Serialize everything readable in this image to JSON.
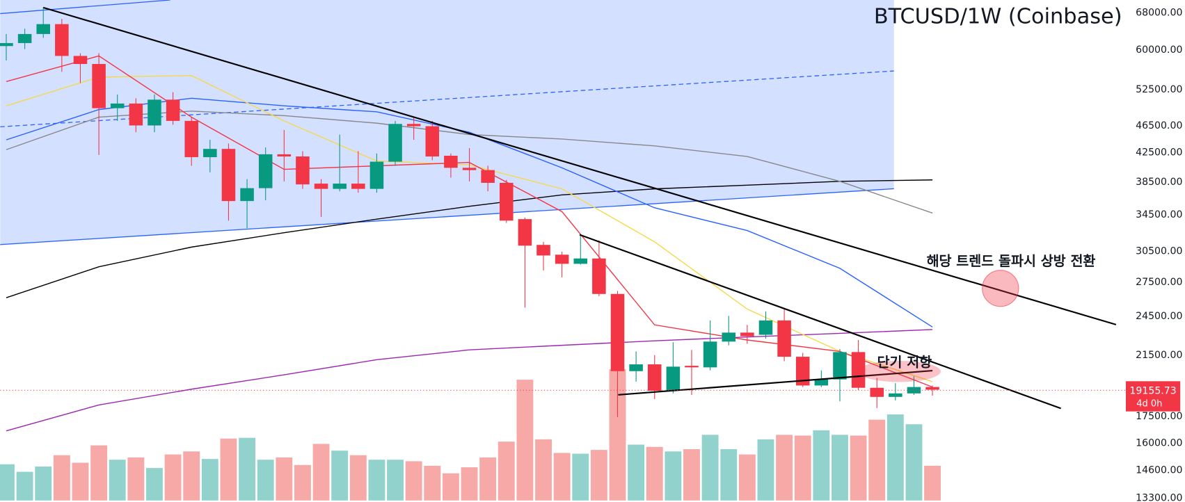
{
  "chart_data": {
    "type": "candlestick",
    "title": "BTCUSD/1W (Coinbase)",
    "log": true,
    "grid": false,
    "up_color": "#089981",
    "down_color": "#f23645",
    "up_volume_color": "#92d2cc",
    "down_volume_color": "#f7a9a7",
    "ylim": [
      13200,
      71000
    ],
    "yticks": [
      {
        "value": 13300,
        "label": "13300.00"
      },
      {
        "value": 14600,
        "label": "14600.00"
      },
      {
        "value": 16000,
        "label": "16000.00"
      },
      {
        "value": 17500,
        "label": "17500.00"
      },
      {
        "value": 21500,
        "label": "21500.00"
      },
      {
        "value": 24500,
        "label": "24500.00"
      },
      {
        "value": 27500,
        "label": "27500.00"
      },
      {
        "value": 30500,
        "label": "30500.00"
      },
      {
        "value": 34500,
        "label": "34500.00"
      },
      {
        "value": 38500,
        "label": "38500.00"
      },
      {
        "value": 42500,
        "label": "42500.00"
      },
      {
        "value": 46500,
        "label": "46500.00"
      },
      {
        "value": 52500,
        "label": "52500.00"
      },
      {
        "value": 60000,
        "label": "60000.00"
      },
      {
        "value": 68000,
        "label": "68000.00"
      }
    ],
    "open": [
      60810,
      61430,
      63330,
      65470,
      58830,
      57260,
      49350,
      50130,
      46570,
      50790,
      47290,
      41860,
      43040,
      36120,
      37720,
      42270,
      41960,
      38300,
      37630,
      38300,
      37630,
      41230,
      46810,
      46450,
      42060,
      40390,
      40080,
      38400,
      33990,
      31170,
      30160,
      29250,
      29780,
      26430,
      20390,
      20860,
      19090,
      20760,
      20650,
      22520,
      23210,
      23040,
      24180,
      21400,
      19430,
      19830,
      21740,
      19280,
      18700,
      18920,
      19330
    ],
    "high": [
      63330,
      64470,
      69230,
      66630,
      59360,
      59360,
      51680,
      51030,
      51680,
      52080,
      47890,
      44370,
      43820,
      38880,
      43260,
      45870,
      42720,
      38880,
      45170,
      42720,
      42380,
      47290,
      47890,
      47290,
      42380,
      43150,
      40660,
      38780,
      34160,
      31490,
      30470,
      32300,
      31650,
      26700,
      21790,
      21520,
      22470,
      21900,
      24180,
      24550,
      23820,
      24930,
      25190,
      21680,
      20440,
      21960,
      22640,
      19930,
      19580,
      20040,
      19430
    ],
    "low": [
      57940,
      60190,
      62530,
      55770,
      53690,
      42170,
      47290,
      45520,
      45520,
      46690,
      40660,
      39780,
      33820,
      32960,
      36210,
      38590,
      37630,
      34250,
      37330,
      37150,
      37150,
      40660,
      44370,
      41440,
      39080,
      38590,
      37330,
      33560,
      25250,
      28600,
      27950,
      29180,
      26230,
      17470,
      19680,
      18560,
      18920,
      18820,
      20440,
      22240,
      22350,
      22750,
      21080,
      19330,
      19330,
      18420,
      19140,
      18010,
      18480,
      18820,
      18780
    ],
    "close": [
      61430,
      63330,
      65470,
      58830,
      57260,
      49350,
      50130,
      46570,
      50790,
      47290,
      41860,
      43040,
      36120,
      37720,
      42270,
      41960,
      38200,
      37630,
      38300,
      37630,
      41230,
      46810,
      46450,
      41960,
      40390,
      40080,
      38400,
      33820,
      31090,
      30080,
      29250,
      29780,
      26430,
      20390,
      20860,
      19090,
      20700,
      20650,
      22520,
      23210,
      22930,
      24180,
      21400,
      19430,
      19830,
      21740,
      19280,
      18700,
      18920,
      19330,
      19155.73
    ],
    "volume": [
      48,
      38,
      45,
      60,
      50,
      73,
      54,
      57,
      43,
      61,
      65,
      55,
      82,
      83,
      54,
      57,
      47,
      75,
      66,
      60,
      54,
      54,
      52,
      46,
      36,
      44,
      57,
      78,
      160,
      81,
      63,
      62,
      67,
      174,
      74,
      71,
      65,
      68,
      87,
      68,
      61,
      81,
      87,
      86,
      93,
      87,
      86,
      107,
      114,
      101,
      46
    ],
    "countdown": "4d 0h",
    "ma_lines": [
      {
        "color": "#9c27b0",
        "x": [
          0,
          5,
          10,
          15,
          20,
          25,
          30,
          35,
          40,
          45,
          50
        ],
        "values": [
          16680,
          18200,
          19190,
          20140,
          21190,
          21900,
          22240,
          22580,
          22870,
          23150,
          23450
        ]
      },
      {
        "color": "#000000",
        "x": [
          0,
          5,
          10,
          15,
          20,
          25,
          30,
          35,
          40,
          45,
          50
        ],
        "values": [
          26100,
          28960,
          30940,
          32470,
          33990,
          35490,
          36870,
          37630,
          38100,
          38590,
          38780
        ]
      },
      {
        "color": "#888888",
        "x": [
          0,
          5,
          10,
          15,
          20,
          25,
          30,
          35,
          40,
          45,
          50
        ],
        "values": [
          42930,
          47890,
          48870,
          48130,
          46930,
          45170,
          44490,
          43480,
          41960,
          38590,
          34690
        ]
      },
      {
        "color": "#2962ff",
        "x": [
          0,
          5,
          10,
          15,
          20,
          25,
          30,
          35,
          40,
          45,
          50
        ],
        "values": [
          44370,
          49120,
          51030,
          49750,
          48750,
          45520,
          40390,
          35310,
          32710,
          28810,
          23650
        ]
      },
      {
        "color": "#f5d94a",
        "x": [
          0,
          5,
          10,
          15,
          20,
          25,
          30,
          35,
          40,
          45,
          50
        ],
        "values": [
          49750,
          54790,
          55070,
          47290,
          41330,
          40800,
          37630,
          31490,
          25120,
          21790,
          19680
        ]
      },
      {
        "color": "#f23645",
        "x": [
          0,
          5,
          10,
          15,
          20,
          25,
          30,
          35,
          40,
          45,
          50
        ],
        "values": [
          53970,
          58830,
          47890,
          40180,
          40660,
          41130,
          34860,
          23820,
          22640,
          21790,
          19330
        ]
      }
    ],
    "annotations": [
      "해당 트렌드 돌파시 상방 전환",
      "단기 저항"
    ]
  }
}
